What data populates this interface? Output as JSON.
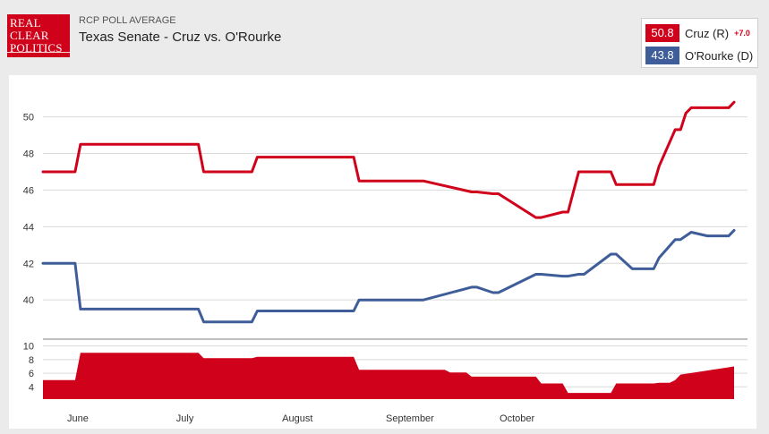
{
  "header": {
    "subtitle": "RCP POLL AVERAGE",
    "title": "Texas Senate - Cruz vs. O'Rourke",
    "logo_lines": [
      "REAL",
      "CLEAR",
      "POLITICS"
    ]
  },
  "legend": {
    "cruz_value": "50.8",
    "cruz_name": "Cruz (R)",
    "cruz_spread": "+7.0",
    "orourke_value": "43.8",
    "orourke_name": "O'Rourke (D)"
  },
  "colors": {
    "cruz": "#d0021b",
    "orourke": "#3f5e99",
    "spread_area": "#d0021b",
    "grid": "#d9d9d9"
  },
  "chart_data": [
    {
      "type": "line",
      "title": "Texas Senate - Cruz vs. O'Rourke",
      "x": [
        0,
        6,
        7,
        29,
        30,
        39,
        40,
        58,
        59,
        70,
        71,
        80,
        81,
        84,
        85,
        92,
        93,
        97,
        98,
        100,
        101,
        106,
        107,
        110,
        111,
        114,
        115,
        118,
        119,
        120,
        121,
        124,
        125,
        127,
        128,
        129
      ],
      "x_ticks": [
        {
          "label": "June",
          "x": 6.5
        },
        {
          "label": "July",
          "x": 26.5
        },
        {
          "label": "August",
          "x": 47.5
        },
        {
          "label": "September",
          "x": 68.5
        },
        {
          "label": "October",
          "x": 88.5
        }
      ],
      "xlim": [
        0,
        129
      ],
      "ylim": [
        38.2,
        51.3
      ],
      "y_ticks": [
        40,
        42,
        44,
        46,
        48,
        50
      ],
      "grid": true,
      "series": [
        {
          "name": "Cruz (R)",
          "values": [
            47.0,
            47.0,
            48.5,
            48.5,
            47.0,
            47.0,
            47.8,
            47.8,
            46.5,
            46.5,
            46.5,
            45.9,
            45.9,
            45.8,
            45.8,
            44.5,
            44.5,
            44.8,
            44.8,
            47.0,
            47.0,
            47.0,
            46.3,
            46.3,
            46.3,
            46.3,
            47.3,
            49.3,
            49.3,
            50.2,
            50.5,
            50.5,
            50.5,
            50.5,
            50.5,
            50.8
          ]
        },
        {
          "name": "O'Rourke (D)",
          "values": [
            42.0,
            42.0,
            39.5,
            39.5,
            38.8,
            38.8,
            39.4,
            39.4,
            40.0,
            40.0,
            40.0,
            40.7,
            40.7,
            40.4,
            40.4,
            41.4,
            41.4,
            41.3,
            41.3,
            41.4,
            41.4,
            42.5,
            42.5,
            41.7,
            41.7,
            41.7,
            42.3,
            43.3,
            43.3,
            43.5,
            43.7,
            43.5,
            43.5,
            43.5,
            43.5,
            43.8
          ]
        }
      ]
    },
    {
      "type": "area",
      "x": [
        0,
        6,
        7,
        29,
        30,
        39,
        40,
        58,
        59,
        70,
        71,
        75,
        76,
        79,
        80,
        92,
        93,
        97,
        98,
        106,
        107,
        114,
        115,
        116,
        117,
        118,
        119,
        129
      ],
      "xlim": [
        0,
        129
      ],
      "ylim": [
        2.2,
        11
      ],
      "y_ticks": [
        4,
        6,
        8,
        10
      ],
      "grid": true,
      "series": [
        {
          "name": "",
          "values": [
            5.0,
            5.0,
            9.0,
            9.0,
            8.2,
            8.2,
            8.4,
            8.4,
            6.5,
            6.5,
            6.5,
            6.5,
            6.1,
            6.1,
            5.5,
            5.5,
            4.5,
            4.5,
            3.1,
            3.1,
            4.5,
            4.5,
            4.6,
            4.6,
            4.6,
            5.0,
            5.8,
            7.0
          ]
        }
      ]
    }
  ]
}
